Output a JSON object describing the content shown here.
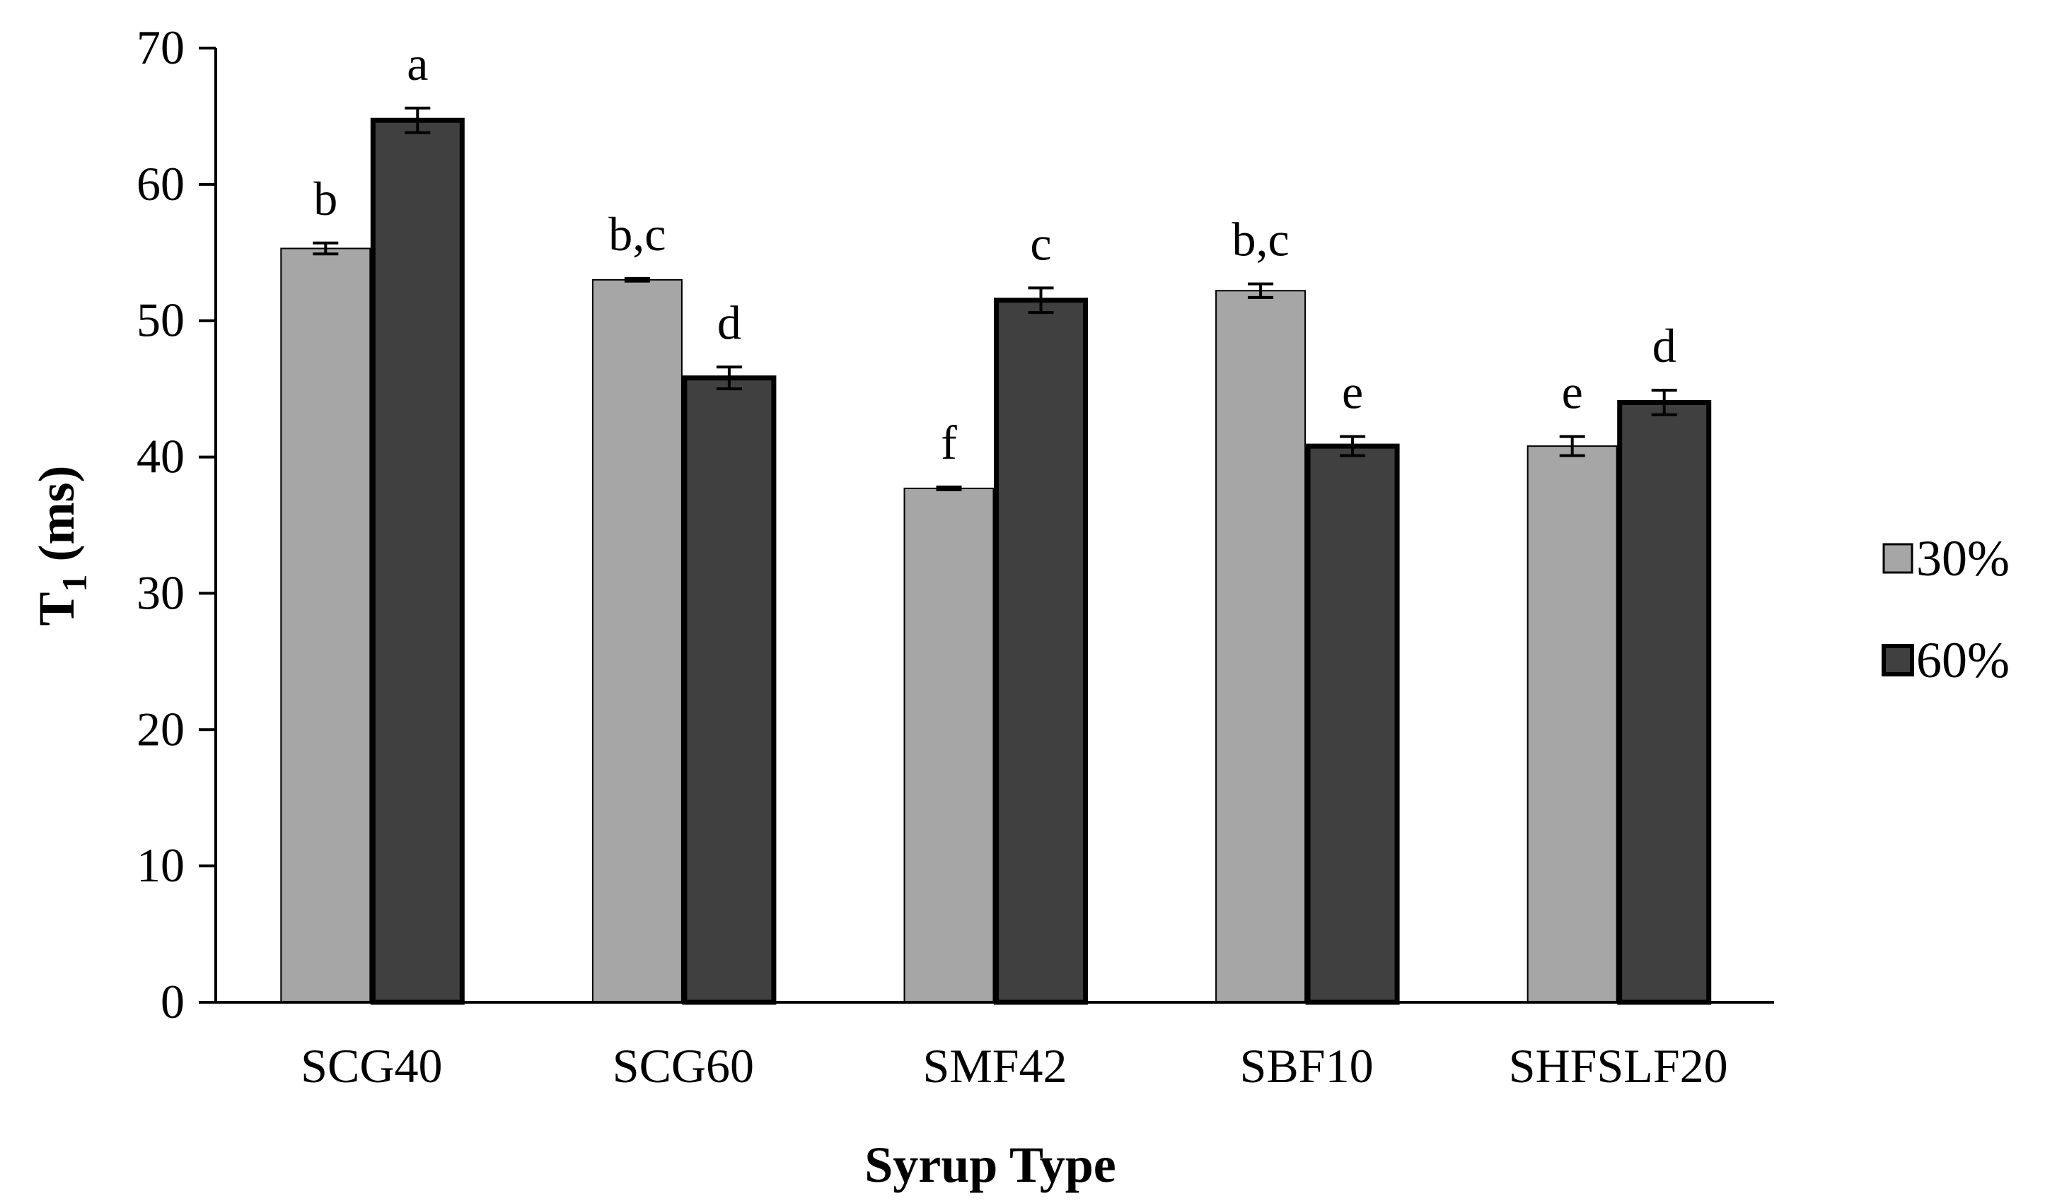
{
  "chart_data": {
    "type": "bar",
    "title": "",
    "xlabel": "Syrup Type",
    "ylabel": "T",
    "ylabel_subscript": "1",
    "ylabel_unit": "(ms)",
    "ylim": [
      0,
      70
    ],
    "yticks": [
      0,
      10,
      20,
      30,
      40,
      50,
      60,
      70
    ],
    "ytick_labels": [
      "0",
      "10",
      "20",
      "30",
      "40",
      "50",
      "60",
      "70"
    ],
    "grid": false,
    "legend_position": "right",
    "categories": [
      "SCG40",
      "SCG60",
      "SMF42",
      "SBF10",
      "SHFSLF20"
    ],
    "series": [
      {
        "name": "30%",
        "color": "#a6a6a6",
        "values": [
          55.3,
          53.0,
          37.7,
          52.2,
          40.8
        ],
        "errors": [
          0.4,
          0.1,
          0.1,
          0.5,
          0.7
        ],
        "sig_labels": [
          "b",
          "b,c",
          "f",
          "b,c",
          "e"
        ]
      },
      {
        "name": "60%",
        "color": "#404040",
        "values": [
          64.7,
          45.8,
          51.5,
          40.8,
          44.0
        ],
        "errors": [
          0.9,
          0.8,
          0.9,
          0.7,
          0.9
        ],
        "sig_labels": [
          "a",
          "d",
          "c",
          "e",
          "d"
        ]
      }
    ]
  }
}
